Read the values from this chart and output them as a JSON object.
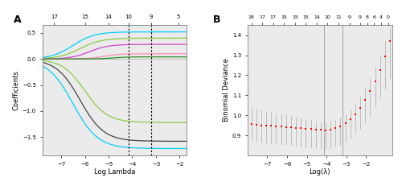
{
  "panel_A": {
    "xlabel": "Log Lambda",
    "ylabel": "Coefficients",
    "top_ticks_labels": [
      17,
      15,
      14,
      10,
      9,
      5
    ],
    "top_ticks_pos": [
      -7.3,
      -6.0,
      -5.0,
      -4.15,
      -3.2,
      -2.05
    ],
    "vline1": -4.15,
    "vline2": -3.2,
    "xlim": [
      -7.8,
      -1.7
    ],
    "ylim": [
      -1.85,
      0.65
    ],
    "lines": [
      {
        "color": "#00CFFF",
        "y_final": 0.52,
        "x_start": -6.5,
        "steep": 2.2
      },
      {
        "color": "#88CC44",
        "y_final": 0.4,
        "x_start": -6.2,
        "steep": 2.2
      },
      {
        "color": "#CC44CC",
        "y_final": 0.28,
        "x_start": -5.8,
        "steep": 2.5
      },
      {
        "color": "#FF88BB",
        "y_final": 0.1,
        "x_start": -5.2,
        "steep": 3.0
      },
      {
        "color": "#228B22",
        "y_final": 0.04,
        "x_start": -4.8,
        "steep": 3.5
      },
      {
        "color": "#444444",
        "y_final": -1.58,
        "x_start": -6.2,
        "steep": 2.0
      },
      {
        "color": "#88CC44",
        "y_final": -1.22,
        "x_start": -6.0,
        "steep": 2.1
      },
      {
        "color": "#00CFFF",
        "y_final": -1.72,
        "x_start": -6.5,
        "steep": 1.9
      }
    ]
  },
  "panel_B": {
    "xlabel": "Log(λ)",
    "ylabel": "Binomial Deviance",
    "top_ticks_labels": [
      18,
      17,
      17,
      15,
      15,
      15,
      14,
      10,
      11,
      9,
      9,
      8,
      6,
      4,
      0
    ],
    "top_ticks_pos": [
      -7.8,
      -7.25,
      -6.7,
      -6.15,
      -5.6,
      -5.05,
      -4.5,
      -3.95,
      -3.4,
      -2.85,
      -2.3,
      -1.95,
      -1.6,
      -1.25,
      -0.9
    ],
    "vline1": -4.15,
    "vline2": -3.2,
    "xlim": [
      -8.0,
      -0.7
    ],
    "ylim": [
      0.8,
      1.45
    ],
    "x_points": [
      -7.8,
      -7.55,
      -7.3,
      -7.05,
      -6.8,
      -6.55,
      -6.3,
      -6.05,
      -5.8,
      -5.55,
      -5.3,
      -5.05,
      -4.8,
      -4.55,
      -4.3,
      -4.05,
      -3.8,
      -3.55,
      -3.3,
      -3.05,
      -2.8,
      -2.55,
      -2.3,
      -2.05,
      -1.8,
      -1.55,
      -1.3,
      -1.05,
      -0.8
    ],
    "y_mean": [
      0.955,
      0.952,
      0.95,
      0.948,
      0.947,
      0.945,
      0.943,
      0.941,
      0.939,
      0.937,
      0.935,
      0.933,
      0.931,
      0.929,
      0.927,
      0.926,
      0.928,
      0.935,
      0.945,
      0.96,
      0.98,
      1.005,
      1.035,
      1.075,
      1.12,
      1.17,
      1.225,
      1.295,
      1.37
    ],
    "y_upper": [
      1.04,
      1.03,
      1.025,
      1.02,
      1.015,
      1.01,
      1.005,
      1.0,
      0.995,
      0.99,
      0.985,
      0.98,
      0.975,
      0.97,
      0.965,
      0.963,
      0.967,
      0.975,
      0.988,
      1.005,
      1.028,
      1.058,
      1.092,
      1.135,
      1.185,
      1.24,
      1.3,
      1.37,
      1.44
    ],
    "y_lower": [
      0.87,
      0.868,
      0.865,
      0.863,
      0.86,
      0.858,
      0.855,
      0.852,
      0.85,
      0.847,
      0.844,
      0.841,
      0.838,
      0.836,
      0.835,
      0.833,
      0.836,
      0.843,
      0.852,
      0.866,
      0.885,
      0.907,
      0.932,
      0.963,
      0.998,
      1.04,
      1.085,
      1.135,
      1.185
    ]
  }
}
